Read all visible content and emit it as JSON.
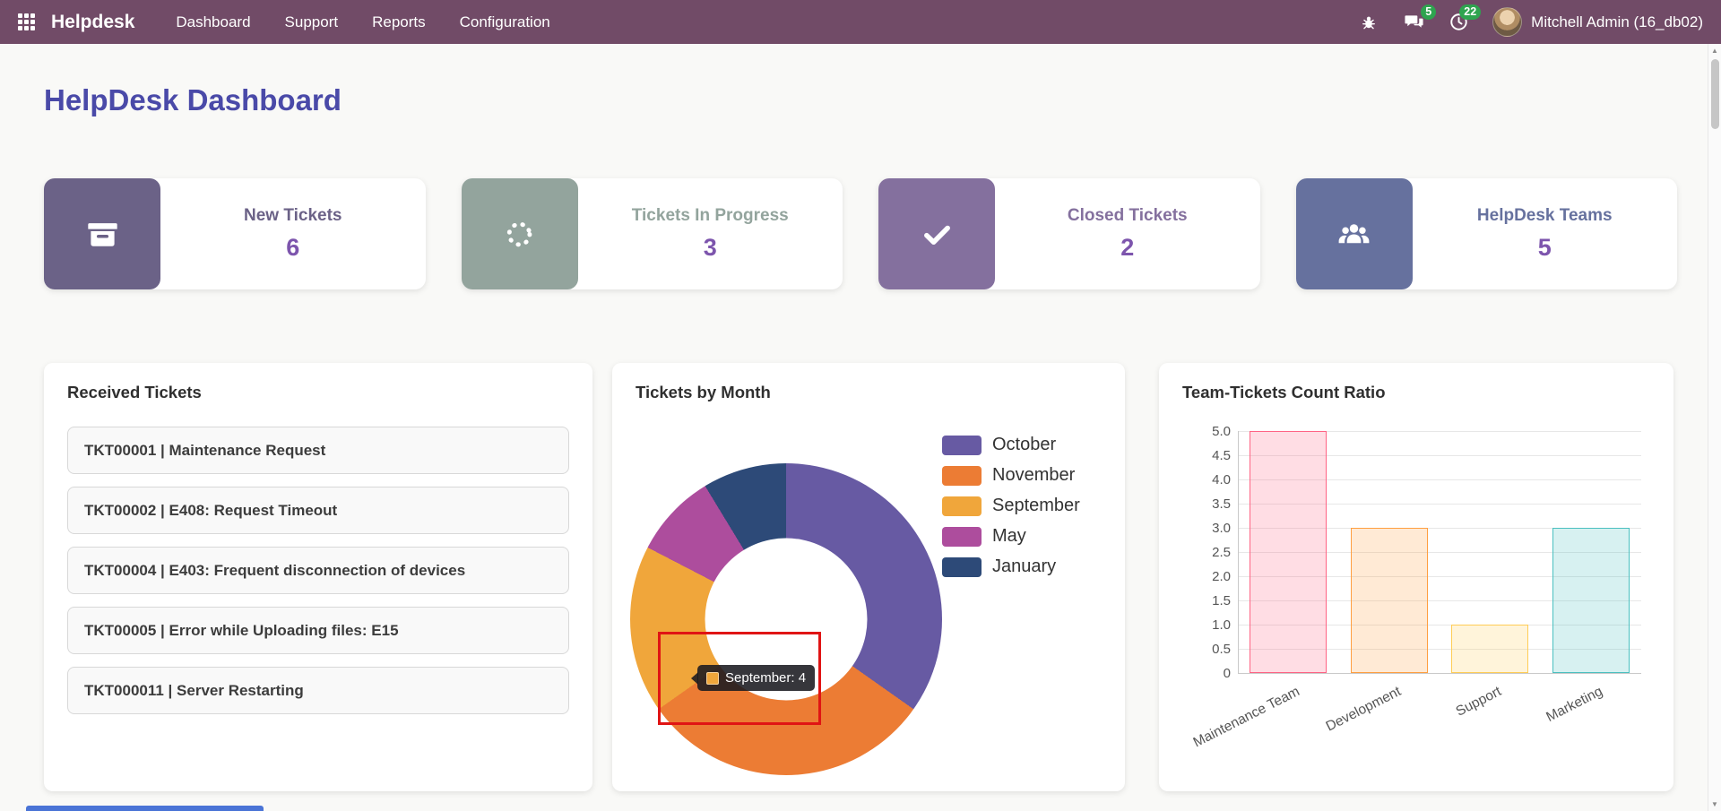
{
  "theme": {
    "navbar_bg": "#714B67",
    "heading_color": "#4a4aa8",
    "kpi_value_color": "#7d55ad",
    "badge_color": "#2ea44f",
    "annotation_color": "#e01414",
    "peek_color": "#4a74d6"
  },
  "navbar": {
    "brand": "Helpdesk",
    "menu": [
      {
        "label": "Dashboard"
      },
      {
        "label": "Support"
      },
      {
        "label": "Reports"
      },
      {
        "label": "Configuration"
      }
    ],
    "messages_badge": "5",
    "activities_badge": "22",
    "user_name": "Mitchell Admin (16_db02)"
  },
  "page": {
    "title": "HelpDesk Dashboard"
  },
  "kpis": [
    {
      "label": "New Tickets",
      "value": "6",
      "icon": "archive-icon",
      "tile_color": "#6b6287"
    },
    {
      "label": "Tickets In Progress",
      "value": "3",
      "icon": "spinner-icon",
      "tile_color": "#93a49d"
    },
    {
      "label": "Closed Tickets",
      "value": "2",
      "icon": "check-icon",
      "tile_color": "#84709e"
    },
    {
      "label": "HelpDesk Teams",
      "value": "5",
      "icon": "team-icon",
      "tile_color": "#66719e"
    }
  ],
  "panels": {
    "received_tickets": {
      "title": "Received Tickets",
      "items": [
        "TKT00001 | Maintenance Request",
        "TKT00002 | E408: Request Timeout",
        "TKT00004 | E403: Frequent disconnection of devices",
        "TKT00005 | Error while Uploading files: E15",
        "TKT000011 | Server Restarting"
      ]
    },
    "tickets_by_month": {
      "tooltip_text": "September: 4"
    }
  },
  "chart_data": [
    {
      "type": "pie",
      "donut": true,
      "title": "Tickets by Month",
      "labels": [
        "October",
        "November",
        "September",
        "May",
        "January"
      ],
      "values": [
        8,
        7,
        4,
        2,
        2
      ],
      "colors": [
        "#675aa3",
        "#ec7c34",
        "#f0a63b",
        "#ad4d9d",
        "#2d4a78"
      ],
      "legend_position": "right",
      "highlighted_slice": {
        "label": "September",
        "value": 4
      }
    },
    {
      "type": "bar",
      "title": "Team-Tickets Count Ratio",
      "categories": [
        "Maintenance Team",
        "Development",
        "Support",
        "Marketing"
      ],
      "values": [
        5,
        3,
        1,
        3
      ],
      "fill_colors": [
        "rgba(255,99,132,0.22)",
        "rgba(255,159,64,0.22)",
        "rgba(255,205,86,0.22)",
        "rgba(75,192,192,0.22)"
      ],
      "border_colors": [
        "#ff6384",
        "#ff9f40",
        "#ffcd56",
        "#4bc0c0"
      ],
      "ylim": [
        0,
        5
      ],
      "ytick_step": 0.5,
      "grid": true,
      "legend": false
    }
  ]
}
